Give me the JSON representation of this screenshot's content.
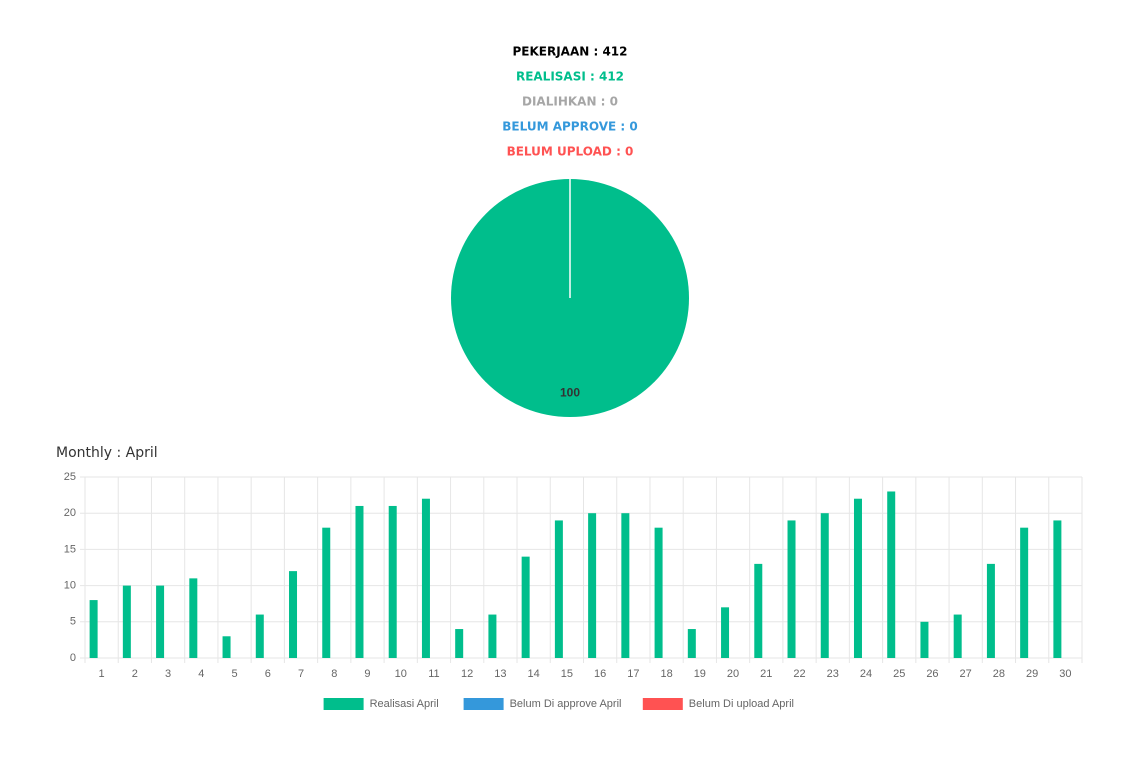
{
  "summary": [
    {
      "text": "PEKERJAAN : 412",
      "color": "#000000"
    },
    {
      "text": "REALISASI : 412",
      "color": "#00be8c"
    },
    {
      "text": "DIALIHKAN : 0",
      "color": "#a6a6a6"
    },
    {
      "text": "BELUM APPROVE : 0",
      "color": "#3498db"
    },
    {
      "text": "BELUM UPLOAD : 0",
      "color": "#ff5252"
    }
  ],
  "chart_data": [
    {
      "type": "pie",
      "values": [
        100
      ],
      "value_labels": [
        "100"
      ],
      "colors": [
        "#00be8c"
      ]
    },
    {
      "type": "bar",
      "title": "Monthly : April",
      "categories": [
        "1",
        "2",
        "3",
        "4",
        "5",
        "6",
        "7",
        "8",
        "9",
        "10",
        "11",
        "12",
        "13",
        "14",
        "15",
        "16",
        "17",
        "18",
        "19",
        "20",
        "21",
        "22",
        "23",
        "24",
        "25",
        "26",
        "27",
        "28",
        "29",
        "30"
      ],
      "series": [
        {
          "name": "Realisasi April",
          "color": "#00be8c",
          "values": [
            8,
            10,
            10,
            11,
            3,
            6,
            12,
            18,
            21,
            21,
            22,
            4,
            6,
            14,
            19,
            20,
            20,
            18,
            4,
            7,
            13,
            19,
            20,
            22,
            23,
            5,
            6,
            13,
            18,
            19
          ]
        },
        {
          "name": "Belum Di approve April",
          "color": "#3498db",
          "values": [
            0,
            0,
            0,
            0,
            0,
            0,
            0,
            0,
            0,
            0,
            0,
            0,
            0,
            0,
            0,
            0,
            0,
            0,
            0,
            0,
            0,
            0,
            0,
            0,
            0,
            0,
            0,
            0,
            0,
            0
          ]
        },
        {
          "name": "Belum Di upload April",
          "color": "#ff5252",
          "values": [
            0,
            0,
            0,
            0,
            0,
            0,
            0,
            0,
            0,
            0,
            0,
            0,
            0,
            0,
            0,
            0,
            0,
            0,
            0,
            0,
            0,
            0,
            0,
            0,
            0,
            0,
            0,
            0,
            0,
            0
          ]
        }
      ],
      "ylim": [
        0,
        25
      ],
      "yticks": [
        0,
        5,
        10,
        15,
        20,
        25
      ],
      "grid": true,
      "legend": "bottom"
    }
  ]
}
